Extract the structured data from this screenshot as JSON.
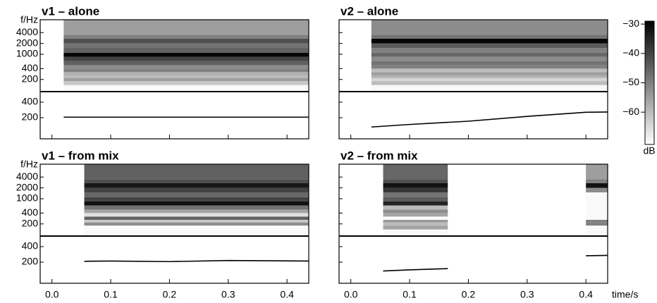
{
  "time_axis": {
    "label": "time/s",
    "xlim": [
      -0.02,
      0.437
    ],
    "xticks": [
      {
        "value": 0,
        "label": "0.0"
      },
      {
        "value": 0.1,
        "label": "0.1"
      },
      {
        "value": 0.2,
        "label": "0.2"
      },
      {
        "value": 0.3,
        "label": "0.3"
      },
      {
        "value": 0.4,
        "label": "0.4"
      }
    ]
  },
  "freq_axis": {
    "label": "f/Hz",
    "ylim": [
      92,
      9100
    ],
    "log": true,
    "yticks": [
      200,
      400,
      1000,
      2000,
      4000
    ]
  },
  "pitch_axis": {
    "ylim": [
      78,
      640
    ],
    "log": true,
    "yticks": [
      200,
      400
    ]
  },
  "colorbar": {
    "label": "dB",
    "lim": [
      -71,
      -29
    ],
    "ticks": [
      {
        "value": -30,
        "label": "−30"
      },
      {
        "value": -40,
        "label": "−40"
      },
      {
        "value": -50,
        "label": "−50"
      },
      {
        "value": -60,
        "label": "−60"
      }
    ]
  },
  "chart_data": [
    {
      "type": "spectrogram",
      "title": "v1 – alone",
      "blocks": [
        {
          "t": [
            0.02,
            0.437
          ],
          "f": [
            100,
            140,
            180,
            220,
            260,
            320,
            400,
            500,
            650,
            850,
            1100,
            1500,
            2000,
            2700,
            3500,
            9000
          ],
          "db": [
            -70,
            -62,
            -55,
            -60,
            -58,
            -50,
            -52,
            -45,
            -40,
            -30,
            -45,
            -48,
            -42,
            -50,
            -55
          ]
        }
      ],
      "pitch": [
        {
          "x": [
            0.02,
            0.1,
            0.2,
            0.3,
            0.437
          ],
          "y": [
            205,
            205,
            205,
            205,
            205
          ]
        }
      ]
    },
    {
      "type": "spectrogram",
      "title": "v2 – alone",
      "blocks": [
        {
          "t": [
            0.035,
            0.437
          ],
          "f": [
            100,
            140,
            180,
            220,
            260,
            320,
            400,
            500,
            650,
            850,
            1100,
            1500,
            2000,
            2700,
            3500,
            9000
          ],
          "db": [
            -70,
            -60,
            -64,
            -58,
            -55,
            -60,
            -50,
            -48,
            -52,
            -46,
            -50,
            -44,
            -30,
            -48,
            -52
          ]
        }
      ],
      "pitch": [
        {
          "x": [
            0.035,
            0.1,
            0.2,
            0.3,
            0.4,
            0.437
          ],
          "y": [
            132,
            148,
            171,
            212,
            255,
            258
          ]
        }
      ]
    },
    {
      "type": "spectrogram",
      "title": "v1 – from mix",
      "blocks": [
        {
          "t": [
            0.055,
            0.437
          ],
          "f": [
            100,
            140,
            180,
            220,
            260,
            320,
            400,
            500,
            650,
            850,
            1100,
            1500,
            2000,
            2700,
            3500,
            9000
          ],
          "db": [
            -70,
            -70,
            -52,
            -62,
            -45,
            -66,
            -56,
            -48,
            -32,
            -40,
            -46,
            -40,
            -33,
            -42,
            -45
          ]
        }
      ],
      "pitch": [
        {
          "x": [
            0.055,
            0.1,
            0.2,
            0.3,
            0.437
          ],
          "y": [
            208,
            210,
            205,
            215,
            210
          ]
        }
      ]
    },
    {
      "type": "spectrogram",
      "title": "v2 – from mix",
      "blocks": [
        {
          "t": [
            0.055,
            0.165
          ],
          "f": [
            100,
            140,
            180,
            220,
            260,
            320,
            400,
            500,
            650,
            850,
            1100,
            1500,
            2000,
            2700,
            3500,
            9000
          ],
          "db": [
            -70,
            -56,
            -60,
            -54,
            -70,
            -56,
            -52,
            -60,
            -35,
            -44,
            -48,
            -38,
            -32,
            -42,
            -46
          ]
        },
        {
          "t": [
            0.4,
            0.437
          ],
          "f": [
            100,
            140,
            180,
            220,
            260,
            320,
            400,
            500,
            650,
            850,
            1100,
            1500,
            2000,
            2700,
            3500,
            9000
          ],
          "db": [
            -70,
            -70,
            -50,
            -50,
            -70,
            -70,
            -70,
            -70,
            -70,
            -70,
            -70,
            -52,
            -32,
            -50,
            -55
          ]
        }
      ],
      "pitch": [
        {
          "x": [
            0.055,
            0.1,
            0.165
          ],
          "y": [
            135,
            142,
            150
          ]
        },
        {
          "x": [
            0.4,
            0.437
          ],
          "y": [
            266,
            270
          ]
        }
      ]
    }
  ]
}
